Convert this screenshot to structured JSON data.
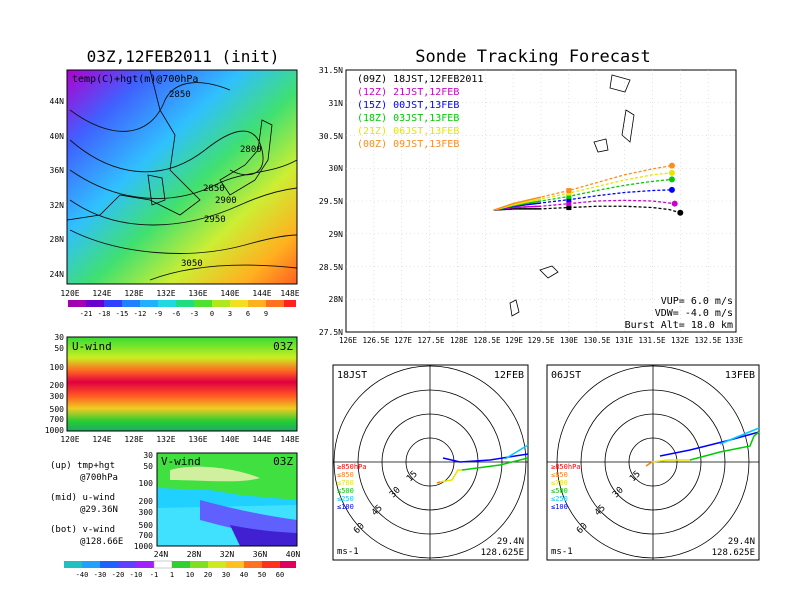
{
  "left": {
    "title": "03Z,12FEB2011 (init)",
    "map_label": "temp(C)+hgt(m)@700hPa",
    "map_lat_ticks": [
      "44N",
      "40N",
      "36N",
      "32N",
      "28N",
      "24N"
    ],
    "lon_ticks": [
      "120E",
      "124E",
      "128E",
      "132E",
      "136E",
      "140E",
      "144E",
      "148E"
    ],
    "contour_labels": [
      "2850",
      "2800",
      "2850",
      "2900",
      "2950",
      "3050"
    ],
    "temp_levels": [
      "-21",
      "-18",
      "-15",
      "-12",
      "-9",
      "-6",
      "-3",
      "0",
      "3",
      "6",
      "9"
    ],
    "u_label": "U-wind",
    "u_time": "03Z",
    "u_pressure_ticks": [
      "30",
      "50",
      "100",
      "200",
      "300",
      "500",
      "700",
      "1000"
    ],
    "v_label": "V-wind",
    "v_time": "03Z",
    "v_pressure_ticks": [
      "30",
      "50",
      "100",
      "200",
      "300",
      "500",
      "700",
      "1000"
    ],
    "v_lat_ticks": [
      "24N",
      "28N",
      "32N",
      "36N",
      "40N"
    ],
    "wind_levels": [
      "-40",
      "-30",
      "-20",
      "-10",
      "-1",
      "1",
      "10",
      "20",
      "30",
      "40",
      "50",
      "60"
    ],
    "notes": {
      "up": "(up) tmp+hgt",
      "up2": "@700hPa",
      "mid": "(mid) u-wind",
      "mid2": "@29.36N",
      "bot": "(bot) v-wind",
      "bot2": "@128.66E"
    }
  },
  "right": {
    "title": "Sonde Tracking Forecast",
    "info": {
      "vup": "VUP= 6.0 m/s",
      "vdw": "VDW= -4.0 m/s",
      "burst": "Burst Alt= 18.0 km"
    },
    "polar_left": {
      "time": "18JST",
      "date": "12FEB",
      "lat": "29.4N",
      "lon": "128.625E",
      "unit": "ms-1"
    },
    "polar_right": {
      "time": "06JST",
      "date": "13FEB",
      "lat": "29.4N",
      "lon": "128.625E",
      "unit": "ms-1"
    },
    "ring_labels": [
      "15",
      "30",
      "45",
      "60"
    ],
    "pressure_legend": [
      "≥850hPa",
      "≤850",
      "≤700",
      "≤500",
      "≤250",
      "≤100"
    ],
    "pressure_legend_colors": [
      "#ff0000",
      "#ff7f00",
      "#e6e600",
      "#00cc00",
      "#00ccff",
      "#0000ff"
    ]
  },
  "chart_data": {
    "type": "line",
    "title": "Sonde Tracking Forecast",
    "x_ticks": [
      "126E",
      "126.5E",
      "127E",
      "127.5E",
      "128E",
      "128.5E",
      "129E",
      "129.5E",
      "130E",
      "130.5E",
      "131E",
      "131.5E",
      "132E",
      "132.5E",
      "133E"
    ],
    "y_ticks": [
      "27.5N",
      "28N",
      "28.5N",
      "29N",
      "29.5N",
      "30N",
      "30.5N",
      "31N",
      "31.5N"
    ],
    "xlim": [
      126,
      133
    ],
    "ylim": [
      27.5,
      31.5
    ],
    "grid": true,
    "legend_position": "top-left",
    "series": [
      {
        "name": "(09Z) 18JST,12FEB2011",
        "color": "#000000",
        "lon": [
          128.65,
          129.0,
          129.5,
          130.0,
          130.5,
          131.0,
          131.5,
          131.8,
          132.0
        ],
        "lat": [
          29.36,
          29.38,
          29.38,
          29.4,
          29.42,
          29.42,
          29.4,
          29.37,
          29.32
        ]
      },
      {
        "name": "(12Z) 21JST,12FEB",
        "color": "#cc00cc",
        "lon": [
          128.65,
          129.0,
          129.5,
          130.0,
          130.5,
          131.0,
          131.5,
          131.9
        ],
        "lat": [
          29.36,
          29.4,
          29.42,
          29.46,
          29.5,
          29.51,
          29.5,
          29.46
        ]
      },
      {
        "name": "(15Z) 00JST,13FEB",
        "color": "#0000ff",
        "lon": [
          128.65,
          129.0,
          129.5,
          130.0,
          130.5,
          131.0,
          131.5,
          131.85
        ],
        "lat": [
          29.36,
          29.42,
          29.47,
          29.52,
          29.58,
          29.63,
          29.66,
          29.67
        ]
      },
      {
        "name": "(18Z) 03JST,13FEB",
        "color": "#00cc00",
        "lon": [
          128.65,
          129.0,
          129.5,
          130.0,
          130.5,
          131.0,
          131.5,
          131.85
        ],
        "lat": [
          29.36,
          29.43,
          29.5,
          29.57,
          29.66,
          29.74,
          29.8,
          29.83
        ]
      },
      {
        "name": "(21Z) 06JST,13FEB",
        "color": "#e6e600",
        "lon": [
          128.65,
          129.0,
          129.5,
          130.0,
          130.5,
          131.0,
          131.5,
          131.85
        ],
        "lat": [
          29.36,
          29.44,
          29.53,
          29.62,
          29.72,
          29.82,
          29.9,
          29.93
        ]
      },
      {
        "name": "(00Z) 09JST,13FEB",
        "color": "#ff8c1a",
        "lon": [
          128.65,
          129.0,
          129.5,
          130.0,
          130.5,
          131.0,
          131.5,
          131.85
        ],
        "lat": [
          29.36,
          29.46,
          29.56,
          29.66,
          29.78,
          29.9,
          29.99,
          30.04
        ]
      }
    ]
  }
}
